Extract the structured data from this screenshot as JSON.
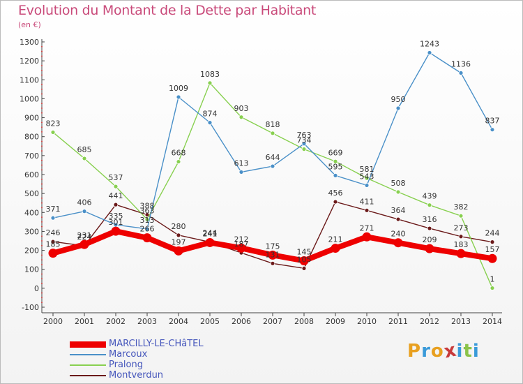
{
  "header": {
    "title": "Evolution du Montant de la Dette par Habitant",
    "unit": "(en €)"
  },
  "logo": {
    "text": "Proxiti",
    "colors": [
      "#e8a020",
      "#3a9ad9",
      "#e8a020",
      "#c83a3a",
      "#3a9ad9",
      "#8bc34a",
      "#3a9ad9"
    ]
  },
  "chart_data": {
    "type": "line",
    "title": "Evolution du Montant de la Dette par Habitant",
    "ylabel": "(en €)",
    "xlabel": "",
    "x": [
      "2000",
      "2001",
      "2002",
      "2003",
      "2004",
      "2005",
      "2006",
      "2007",
      "2008",
      "2009",
      "2010",
      "2011",
      "2012",
      "2013",
      "2014"
    ],
    "ylim": [
      -100,
      1300
    ],
    "yticks": [
      -100,
      0,
      100,
      200,
      300,
      400,
      500,
      600,
      700,
      800,
      900,
      1000,
      1100,
      1200,
      1300
    ],
    "grid": false,
    "legend_position": "bottom-left",
    "series": [
      {
        "name": "MARCILLY-LE-CHâTEL",
        "color": "#ee0000",
        "values": [
          185,
          231,
          301,
          266,
          197,
          241,
          212,
          175,
          145,
          211,
          271,
          240,
          209,
          183,
          157
        ]
      },
      {
        "name": "Marcoux",
        "color": "#4a90c8",
        "values": [
          371,
          406,
          335,
          313,
          1009,
          874,
          613,
          644,
          763,
          595,
          543,
          950,
          1243,
          1136,
          837
        ]
      },
      {
        "name": "Pralong",
        "color": "#88d050",
        "values": [
          823,
          685,
          537,
          363,
          668,
          1083,
          903,
          818,
          734,
          669,
          581,
          508,
          439,
          382,
          1
        ]
      },
      {
        "name": "Montverdun",
        "color": "#6b1a1a",
        "values": [
          246,
          224,
          441,
          388,
          280,
          244,
          187,
          131,
          105,
          456,
          411,
          364,
          316,
          273,
          244
        ]
      }
    ]
  }
}
